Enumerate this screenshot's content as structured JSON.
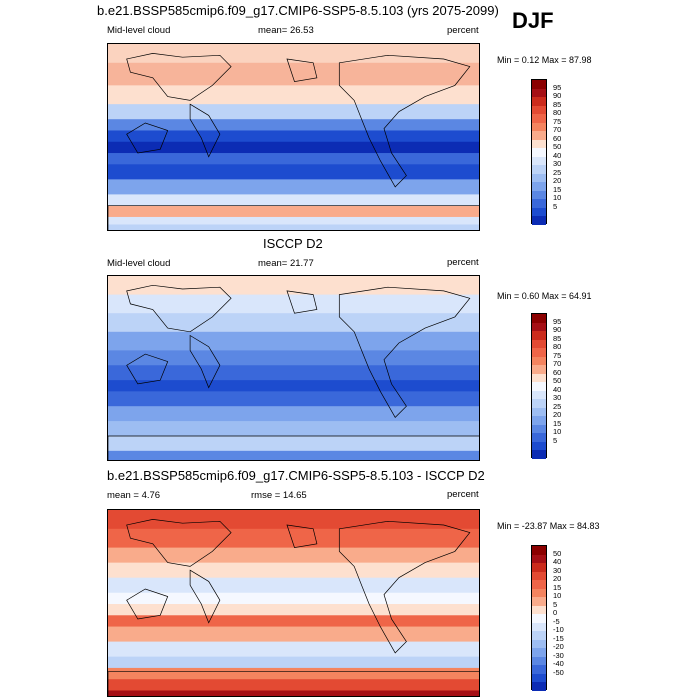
{
  "header": {
    "main_title": "b.e21.BSSP585cmip6.f09_g17.CMIP6-SSP5-8.5.103 (yrs 2075-2099)",
    "season": "DJF"
  },
  "panels": [
    {
      "title": "",
      "left_label": "Mid-level cloud",
      "center_label": "mean=  26.53",
      "right_label": "percent",
      "minmax": "Min =   0.12 Max =  87.98",
      "colorbar": {
        "labels": [
          "95",
          "90",
          "85",
          "80",
          "75",
          "70",
          "60",
          "50",
          "40",
          "30",
          "25",
          "20",
          "15",
          "10",
          "5"
        ],
        "colors": [
          "#8b0000",
          "#a50f15",
          "#cb2b1c",
          "#e34a33",
          "#ef6548",
          "#f4845f",
          "#f9ab8b",
          "#fde0cf",
          "#f5f8ff",
          "#d9e6fb",
          "#bcd3f7",
          "#9dbdf2",
          "#7da4ec",
          "#5b87e3",
          "#3a68da",
          "#1d4ccf",
          "#0c2cb4"
        ]
      },
      "field": "model"
    },
    {
      "title": "ISCCP D2",
      "left_label": "Mid-level cloud",
      "center_label": "mean=  21.77",
      "right_label": "percent",
      "minmax": "Min =   0.60 Max =  64.91",
      "colorbar": {
        "labels": [
          "95",
          "90",
          "85",
          "80",
          "75",
          "70",
          "60",
          "50",
          "40",
          "30",
          "25",
          "20",
          "15",
          "10",
          "5"
        ],
        "colors": [
          "#8b0000",
          "#a50f15",
          "#cb2b1c",
          "#e34a33",
          "#ef6548",
          "#f4845f",
          "#f9ab8b",
          "#fde0cf",
          "#f5f8ff",
          "#d9e6fb",
          "#bcd3f7",
          "#9dbdf2",
          "#7da4ec",
          "#5b87e3",
          "#3a68da",
          "#1d4ccf",
          "#0c2cb4"
        ]
      },
      "field": "obs"
    },
    {
      "title": "b.e21.BSSP585cmip6.f09_g17.CMIP6-SSP5-8.5.103 - ISCCP D2",
      "left_label": "mean =   4.76",
      "center_label": "rmse =  14.65",
      "right_label": "percent",
      "minmax": "Min = -23.87 Max =  84.83",
      "colorbar": {
        "labels": [
          "50",
          "40",
          "30",
          "20",
          "15",
          "10",
          "5",
          "0",
          "-5",
          "-10",
          "-15",
          "-20",
          "-30",
          "-40",
          "-50"
        ],
        "colors": [
          "#8b0000",
          "#a50f15",
          "#cb2b1c",
          "#e34a33",
          "#ef6548",
          "#f4845f",
          "#f9ab8b",
          "#fde0cf",
          "#f5f8ff",
          "#d9e6fb",
          "#bcd3f7",
          "#9dbdf2",
          "#7da4ec",
          "#5b87e3",
          "#3a68da",
          "#1d4ccf",
          "#0c2cb4"
        ]
      },
      "field": "diff"
    }
  ]
}
